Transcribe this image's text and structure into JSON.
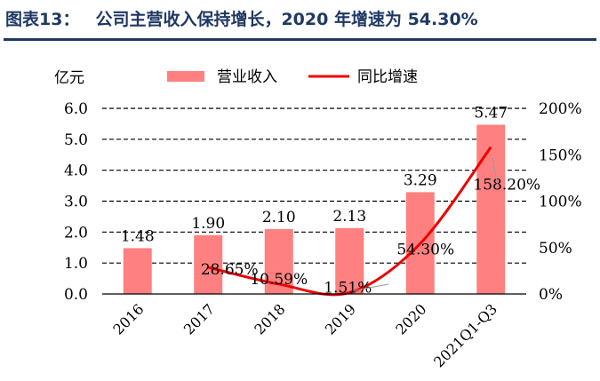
{
  "header": {
    "figure_label": "图表13：",
    "figure_title": "公司主营收入保持增长，2020 年增速为 54.30%"
  },
  "chart_data": {
    "type": "bar",
    "categories": [
      "2016",
      "2017",
      "2018",
      "2019",
      "2020",
      "2021Q1-Q3"
    ],
    "series": [
      {
        "name": "营业收入",
        "type": "bar",
        "axis": "left",
        "color": "#ff8080",
        "values": [
          1.48,
          1.9,
          2.1,
          2.13,
          3.29,
          5.47
        ],
        "data_labels": [
          "1.48",
          "1.90",
          "2.10",
          "2.13",
          "3.29",
          "5.47"
        ]
      },
      {
        "name": "同比增速",
        "type": "line",
        "axis": "right",
        "color": "#ee0000",
        "values": [
          null,
          28.65,
          10.59,
          1.51,
          54.3,
          158.2
        ],
        "data_labels": [
          "",
          "28.65%",
          "10.59%",
          "1.51%",
          "54.30%",
          "158.20%"
        ]
      }
    ],
    "left_axis": {
      "unit_label": "亿元",
      "ylim": [
        0,
        6
      ],
      "ticks": [
        "0.0",
        "1.0",
        "2.0",
        "3.0",
        "4.0",
        "5.0",
        "6.0"
      ]
    },
    "right_axis": {
      "ylim": [
        0,
        200
      ],
      "ticks": [
        "0%",
        "50%",
        "100%",
        "150%",
        "200%"
      ]
    },
    "grid": "horizontal-dashed",
    "legend": "top"
  }
}
